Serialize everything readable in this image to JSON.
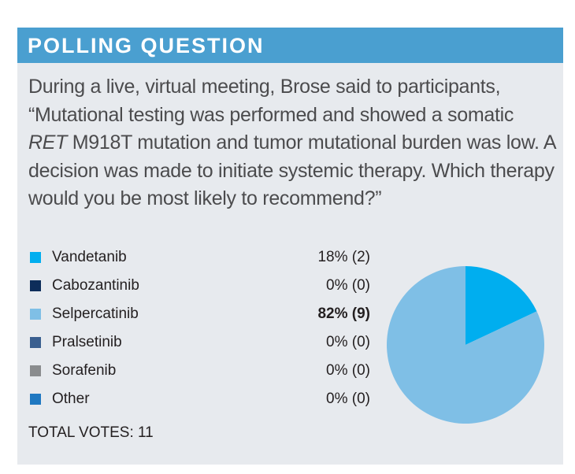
{
  "chart_data": {
    "type": "pie",
    "title": "POLLING QUESTION",
    "question": [
      "During a live, virtual meeting, Brose said to participants, “Mutational testing was performed and showed a somatic ",
      "RET",
      " M918T mutation and tumor mutational burden was low. A decision was made to initiate systemic therapy. Which therapy would you be most likely to recommend?”"
    ],
    "categories": [
      "Vandetanib",
      "Cabozantinib",
      "Selpercatinib",
      "Pralsetinib",
      "Sorafenib",
      "Other"
    ],
    "values": [
      18,
      0,
      82,
      0,
      0,
      0
    ],
    "value_labels": [
      "18% (2)",
      "0% (0)",
      "82% (9)",
      "0% (0)",
      "0% (0)",
      "0% (0)"
    ],
    "colors": [
      "#00aeef",
      "#0d2d5a",
      "#7fbfe6",
      "#3a5f8f",
      "#8a8c8e",
      "#1f78c1"
    ],
    "bold_index": 2,
    "total_votes": "TOTAL VOTES: 11"
  }
}
